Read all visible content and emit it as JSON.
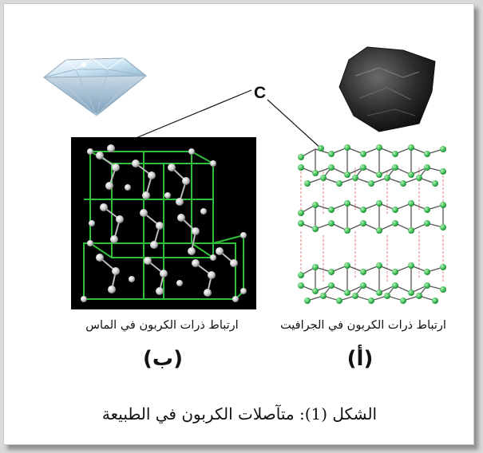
{
  "labels": {
    "atom": "C",
    "diamond_caption": "ارتباط ذرات الكربون في الماس",
    "graphite_caption": "ارتباط ذرات الكربون في الجرافيت",
    "diamond_letter": "(ب)",
    "graphite_letter": "(أ)",
    "figure_caption": "الشكل (1): متآصلات الكربون في الطبيعة"
  },
  "colors": {
    "bond_green": "#2fbf3a",
    "atom_green": "#3fbf5a",
    "diamond_atom": "#c9c9c9",
    "interlayer": "#e08080",
    "diamond_bg": "#000000"
  },
  "icons": {
    "diamond": "diamond-gem-icon",
    "graphite": "graphite-rock-icon"
  }
}
